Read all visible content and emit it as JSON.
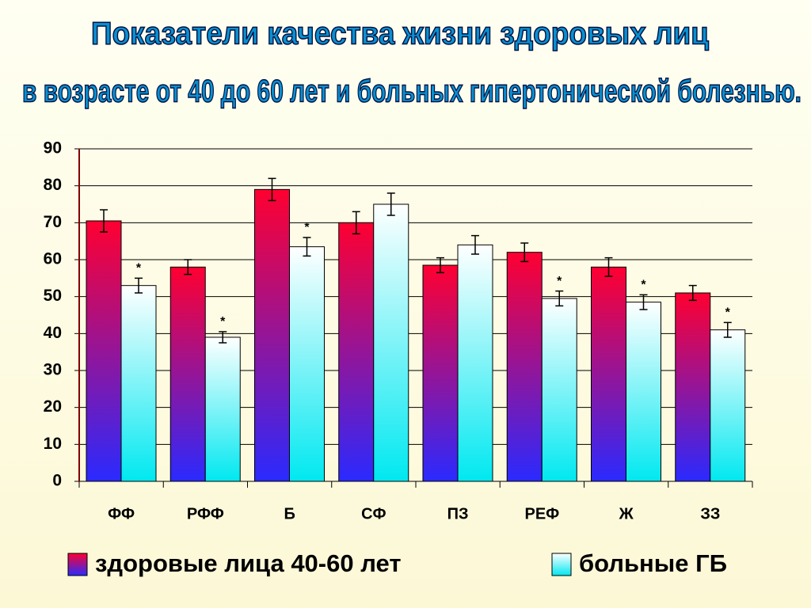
{
  "chart_data": {
    "type": "bar",
    "title": "Показатели качества жизни здоровых лиц",
    "subtitle": "в возрасте от 40 до 60 лет и больных гипертонической болезнью.",
    "categories": [
      "ФФ",
      "РФФ",
      "Б",
      "СФ",
      "ПЗ",
      "РЕФ",
      "Ж",
      "ЗЗ"
    ],
    "series": [
      {
        "name": "здоровые лица 40-60 лет",
        "color": [
          "#ff0030",
          "#2a2aff"
        ],
        "values": [
          70.5,
          58,
          79,
          70,
          58.5,
          62,
          58,
          51
        ],
        "errors": [
          3,
          2,
          3,
          3,
          2,
          2.5,
          2.5,
          2
        ],
        "markers": [
          null,
          null,
          null,
          null,
          null,
          null,
          null,
          null
        ]
      },
      {
        "name": "больные ГБ",
        "color": [
          "#ffffff",
          "#00e8f0"
        ],
        "values": [
          53,
          39,
          63.5,
          75,
          64,
          49.5,
          48.5,
          41
        ],
        "errors": [
          2,
          1.5,
          2.5,
          3,
          2.5,
          2,
          2,
          2
        ],
        "markers": [
          "*",
          "*",
          "*",
          null,
          null,
          "*",
          "*",
          "*"
        ]
      }
    ],
    "ylim": [
      0,
      90
    ],
    "yticks": [
      0,
      10,
      20,
      30,
      40,
      50,
      60,
      70,
      80,
      90
    ],
    "grid": true
  }
}
